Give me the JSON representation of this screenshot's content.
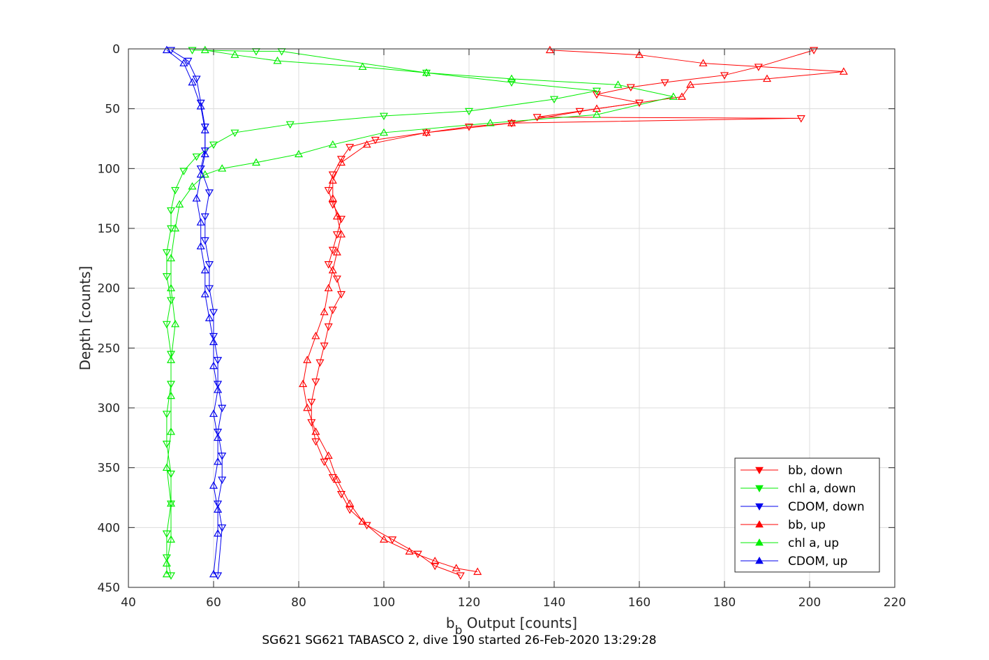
{
  "chart_data": {
    "type": "line",
    "title": "",
    "subtitle": "SG621 SG621 TABASCO 2, dive 190 started 26-Feb-2020 13:29:28",
    "xlabel_main": "b",
    "xlabel_sub": "b",
    "xlabel_rest": " Output [counts]",
    "ylabel": "Depth [counts]",
    "xlim": [
      40,
      220
    ],
    "ylim": [
      0,
      450
    ],
    "y_reversed": true,
    "xticks": [
      "40",
      "60",
      "80",
      "100",
      "120",
      "140",
      "160",
      "180",
      "200",
      "220"
    ],
    "yticks": [
      "0",
      "50",
      "100",
      "150",
      "200",
      "250",
      "300",
      "350",
      "400",
      "450"
    ],
    "grid": true,
    "legend_position": "bottom-right",
    "series": [
      {
        "name": "bb, down",
        "color": "#ff0000",
        "marker": "triangle-down",
        "x": [
          201,
          188,
          180,
          166,
          158,
          150,
          160,
          146,
          136,
          198,
          130,
          120,
          110,
          98,
          92,
          90,
          88,
          87,
          88,
          90,
          89,
          88,
          87,
          89,
          90,
          88,
          87,
          86,
          85,
          84,
          83,
          83,
          84,
          86,
          88,
          90,
          92,
          96,
          102,
          108,
          112,
          118
        ],
        "y": [
          1,
          15,
          22,
          28,
          32,
          38,
          45,
          52,
          57,
          58,
          62,
          65,
          70,
          76,
          82,
          92,
          105,
          118,
          130,
          142,
          155,
          168,
          180,
          192,
          205,
          218,
          232,
          248,
          262,
          278,
          295,
          312,
          328,
          345,
          358,
          372,
          385,
          398,
          410,
          422,
          432,
          440
        ]
      },
      {
        "name": "chl a, down",
        "color": "#00ee00",
        "marker": "triangle-down",
        "x": [
          55,
          70,
          76,
          110,
          130,
          150,
          140,
          120,
          100,
          78,
          65,
          60,
          56,
          53,
          51,
          50,
          50,
          49,
          49,
          50,
          49,
          50,
          50,
          49,
          49,
          50,
          50,
          49,
          49,
          50
        ],
        "y": [
          1,
          2,
          2,
          20,
          28,
          35,
          42,
          52,
          56,
          63,
          70,
          80,
          90,
          102,
          118,
          135,
          150,
          170,
          190,
          210,
          230,
          255,
          280,
          305,
          330,
          355,
          380,
          405,
          425,
          440
        ]
      },
      {
        "name": "CDOM, down",
        "color": "#0000ee",
        "marker": "triangle-down",
        "x": [
          50,
          54,
          56,
          57,
          58,
          58,
          57,
          59,
          58,
          58,
          59,
          59,
          60,
          60,
          61,
          61,
          62,
          61,
          62,
          62,
          61,
          62,
          61
        ],
        "y": [
          1,
          10,
          25,
          45,
          65,
          85,
          100,
          120,
          140,
          160,
          180,
          200,
          220,
          240,
          260,
          280,
          300,
          320,
          340,
          360,
          380,
          400,
          440
        ]
      },
      {
        "name": "bb, up",
        "color": "#ff0000",
        "marker": "triangle-up",
        "x": [
          139,
          160,
          175,
          208,
          190,
          172,
          170,
          150,
          130,
          110,
          96,
          90,
          88,
          88,
          89,
          90,
          89,
          88,
          87,
          86,
          84,
          82,
          81,
          82,
          84,
          87,
          89,
          92,
          95,
          100,
          106,
          112,
          117,
          122
        ],
        "y": [
          1,
          5,
          12,
          19,
          25,
          30,
          40,
          50,
          62,
          70,
          80,
          95,
          110,
          125,
          140,
          155,
          170,
          185,
          200,
          220,
          240,
          260,
          280,
          300,
          320,
          340,
          360,
          380,
          395,
          410,
          420,
          428,
          434,
          437
        ]
      },
      {
        "name": "chl a, up",
        "color": "#00ee00",
        "marker": "triangle-up",
        "x": [
          58,
          65,
          75,
          95,
          110,
          130,
          155,
          168,
          150,
          125,
          100,
          88,
          80,
          70,
          62,
          58,
          55,
          52,
          51,
          50,
          50,
          51,
          50,
          50,
          50,
          49,
          50,
          50,
          49,
          49
        ],
        "y": [
          1,
          5,
          10,
          15,
          20,
          25,
          30,
          40,
          55,
          62,
          70,
          80,
          88,
          95,
          100,
          105,
          115,
          130,
          150,
          175,
          200,
          230,
          260,
          290,
          320,
          350,
          380,
          410,
          430,
          439
        ]
      },
      {
        "name": "CDOM, up",
        "color": "#0000ee",
        "marker": "triangle-up",
        "x": [
          49,
          53,
          55,
          57,
          58,
          58,
          57,
          56,
          57,
          57,
          58,
          58,
          59,
          60,
          60,
          61,
          60,
          61,
          61,
          60,
          61,
          61,
          60
        ],
        "y": [
          1,
          12,
          28,
          48,
          68,
          88,
          105,
          125,
          145,
          165,
          185,
          205,
          225,
          245,
          265,
          285,
          305,
          325,
          345,
          365,
          385,
          405,
          439
        ]
      }
    ]
  }
}
